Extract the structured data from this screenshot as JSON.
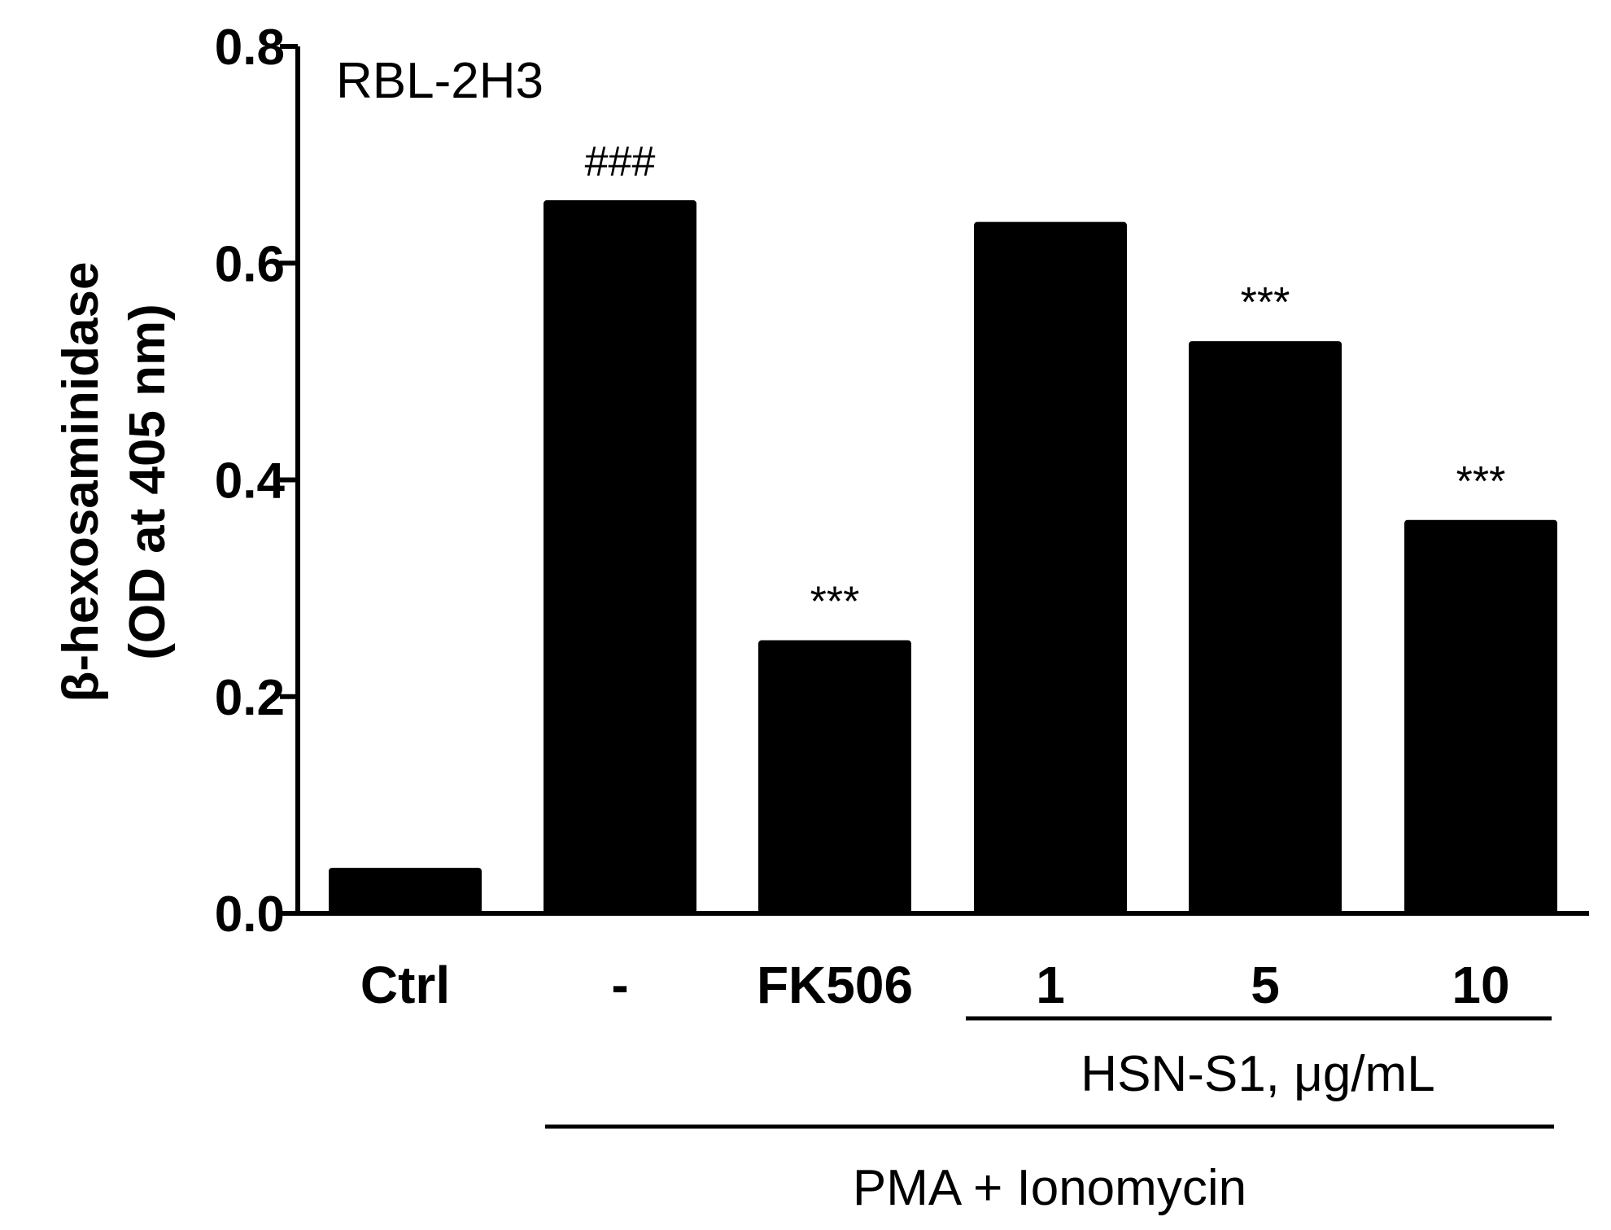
{
  "chart_data": {
    "type": "bar",
    "title": "RBL-2H3",
    "ylabel_line1": "β-hexosaminidase",
    "ylabel_line2": "(OD at 405 nm)",
    "categories": [
      "Ctrl",
      "-",
      "FK506",
      "1",
      "5",
      "10"
    ],
    "values": [
      0.042,
      0.658,
      0.252,
      0.638,
      0.528,
      0.363
    ],
    "annotations": [
      "",
      "###",
      "***",
      "",
      "***",
      "***"
    ],
    "ylim": [
      0,
      0.8
    ],
    "yticks": [
      "0.0",
      "0.2",
      "0.4",
      "0.6",
      "0.8"
    ],
    "group_labels": {
      "hsn": "HSN-S1, μg/mL",
      "pma": "PMA + Ionomycin"
    },
    "bar_color": "#000000",
    "grid": false,
    "legend": "none"
  }
}
